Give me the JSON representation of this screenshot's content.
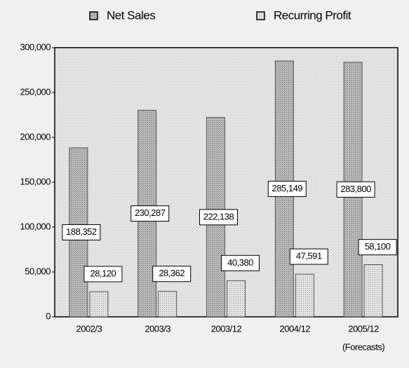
{
  "chart_data": {
    "type": "bar",
    "categories": [
      "2002/3",
      "2003/3",
      "2003/12",
      "2004/12",
      "2005/12"
    ],
    "annotations": [
      "(Forecasts)"
    ],
    "series": [
      {
        "name": "Net Sales",
        "color": "#a8a8a8",
        "values": [
          188352,
          230287,
          222138,
          285149,
          283800
        ],
        "value_labels": [
          "188,352",
          "230,287",
          "222,138",
          "285,149",
          "283,800"
        ]
      },
      {
        "name": "Recurring Profit",
        "color": "#d4d4d4",
        "values": [
          28120,
          28362,
          40380,
          47591,
          58100
        ],
        "value_labels": [
          "28,120",
          "28,362",
          "40,380",
          "47,591",
          "58,100"
        ]
      }
    ],
    "ylim": [
      0,
      300000
    ],
    "yticks": [
      0,
      {
        "value": 50000,
        "label": "50,000"
      },
      {
        "value": 100000,
        "label": "100,000"
      },
      {
        "value": 150000,
        "label": "150,000"
      },
      {
        "value": 200000,
        "label": "200,000"
      },
      {
        "value": 250000,
        "label": "250,000"
      },
      {
        "value": 300000,
        "label": "300,000"
      }
    ],
    "grid": false
  }
}
